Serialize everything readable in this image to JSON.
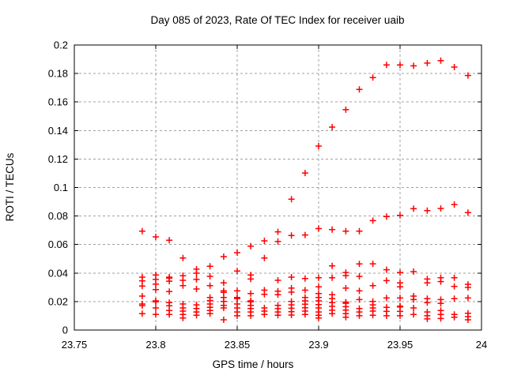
{
  "chart_data": {
    "type": "scatter",
    "title": "Day 085 of 2023, Rate Of TEC Index for receiver uaib",
    "xlabel": "GPS time / hours",
    "ylabel": "ROTI / TECUs",
    "xlim": [
      23.75,
      24
    ],
    "ylim": [
      0,
      0.2
    ],
    "xticks": [
      23.75,
      23.8,
      23.85,
      23.9,
      23.95,
      24
    ],
    "xtick_labels": [
      "23.75",
      "23.8",
      "23.85",
      "23.9",
      "23.95",
      "24"
    ],
    "yticks": [
      0,
      0.02,
      0.04,
      0.06,
      0.08,
      0.1,
      0.12,
      0.14,
      0.16,
      0.18,
      0.2
    ],
    "ytick_labels": [
      "0",
      "0.02",
      "0.04",
      "0.06",
      "0.08",
      "0.1",
      "0.12",
      "0.14",
      "0.16",
      "0.18",
      "0.2"
    ],
    "grid": true,
    "legend": "none",
    "marker": "plus",
    "marker_color": "#ff0000",
    "grid_color": "#a0a0a0",
    "border_color": "#000000",
    "background_color": "#ffffff",
    "columns": [
      {
        "x": 23.7917,
        "y": [
          0.0694,
          0.0371,
          0.0345,
          0.0309,
          0.0238,
          0.0183,
          0.0172,
          0.0115
        ]
      },
      {
        "x": 23.8,
        "y": [
          0.0654,
          0.0386,
          0.0355,
          0.0322,
          0.0284,
          0.0205,
          0.0198,
          0.0155,
          0.0109
        ]
      },
      {
        "x": 23.8083,
        "y": [
          0.063,
          0.0371,
          0.0364,
          0.0343,
          0.027,
          0.0192,
          0.017,
          0.0137,
          0.0109
        ]
      },
      {
        "x": 23.8167,
        "y": [
          0.0506,
          0.0381,
          0.0349,
          0.0312,
          0.0183,
          0.0155,
          0.0133,
          0.0109,
          0.0085
        ]
      },
      {
        "x": 23.825,
        "y": [
          0.0427,
          0.0399,
          0.0355,
          0.0288,
          0.0177,
          0.0151,
          0.0127,
          0.0104
        ]
      },
      {
        "x": 23.8333,
        "y": [
          0.0447,
          0.0377,
          0.0312,
          0.0229,
          0.0207,
          0.0183,
          0.0159,
          0.0137,
          0.0115
        ]
      },
      {
        "x": 23.8417,
        "y": [
          0.0515,
          0.0331,
          0.0275,
          0.0264,
          0.0229,
          0.0201,
          0.0173,
          0.0155,
          0.0072
        ]
      },
      {
        "x": 23.85,
        "y": [
          0.0543,
          0.0414,
          0.0275,
          0.0229,
          0.0221,
          0.0183,
          0.0155,
          0.0127,
          0.01
        ]
      },
      {
        "x": 23.8583,
        "y": [
          0.0589,
          0.0386,
          0.0358,
          0.0256,
          0.0205,
          0.0198,
          0.0173,
          0.0151,
          0.0127,
          0.01
        ]
      },
      {
        "x": 23.8667,
        "y": [
          0.0626,
          0.0506,
          0.028,
          0.0251,
          0.0155,
          0.0133,
          0.0109
        ]
      },
      {
        "x": 23.875,
        "y": [
          0.0689,
          0.0621,
          0.0349,
          0.0273,
          0.0248,
          0.0173,
          0.015,
          0.0127,
          0.0104
        ]
      },
      {
        "x": 23.8833,
        "y": [
          0.0918,
          0.0663,
          0.0371,
          0.0294,
          0.0266,
          0.0201,
          0.0177,
          0.0153,
          0.0129,
          0.0105
        ]
      },
      {
        "x": 23.8917,
        "y": [
          0.1102,
          0.0667,
          0.0362,
          0.028,
          0.0229,
          0.0205,
          0.0181,
          0.0157,
          0.0133,
          0.0109
        ]
      },
      {
        "x": 23.9,
        "y": [
          0.1291,
          0.0712,
          0.0367,
          0.0303,
          0.0256,
          0.0229,
          0.0205,
          0.0179,
          0.0155,
          0.0127,
          0.0104,
          0.0085
        ]
      },
      {
        "x": 23.9083,
        "y": [
          0.1424,
          0.0705,
          0.045,
          0.0367,
          0.0248,
          0.022,
          0.0192,
          0.0166,
          0.0139,
          0.0115
        ]
      },
      {
        "x": 23.9167,
        "y": [
          0.1546,
          0.0694,
          0.0404,
          0.0382,
          0.0294,
          0.0196,
          0.0188,
          0.0164,
          0.014,
          0.0115,
          0.009
        ]
      },
      {
        "x": 23.925,
        "y": [
          0.1688,
          0.0694,
          0.0464,
          0.0377,
          0.0275,
          0.0214,
          0.0151,
          0.0127,
          0.01
        ]
      },
      {
        "x": 23.9333,
        "y": [
          0.1771,
          0.0768,
          0.0465,
          0.0312,
          0.0201,
          0.0177,
          0.0155,
          0.0133,
          0.0104
        ]
      },
      {
        "x": 23.9417,
        "y": [
          0.186,
          0.0796,
          0.0423,
          0.0347,
          0.0225,
          0.0159,
          0.0131,
          0.01
        ]
      },
      {
        "x": 23.95,
        "y": [
          0.186,
          0.0805,
          0.0404,
          0.0331,
          0.0303,
          0.0225,
          0.0168,
          0.0162,
          0.0131,
          0.01
        ]
      },
      {
        "x": 23.9583,
        "y": [
          0.1854,
          0.0852,
          0.041,
          0.0238,
          0.0214,
          0.0155,
          0.0109
        ]
      },
      {
        "x": 23.9667,
        "y": [
          0.1873,
          0.0838,
          0.0358,
          0.0331,
          0.022,
          0.0192,
          0.0127,
          0.01,
          0.0078
        ]
      },
      {
        "x": 23.975,
        "y": [
          0.1891,
          0.0853,
          0.0367,
          0.034,
          0.0214,
          0.0187,
          0.0137,
          0.0109,
          0.0081
        ]
      },
      {
        "x": 23.9833,
        "y": [
          0.1845,
          0.0881,
          0.0367,
          0.0306,
          0.022,
          0.0109,
          0.009
        ]
      },
      {
        "x": 23.9917,
        "y": [
          0.1786,
          0.0824,
          0.0321,
          0.0299,
          0.0225,
          0.0118,
          0.0094,
          0.0072
        ]
      }
    ]
  }
}
